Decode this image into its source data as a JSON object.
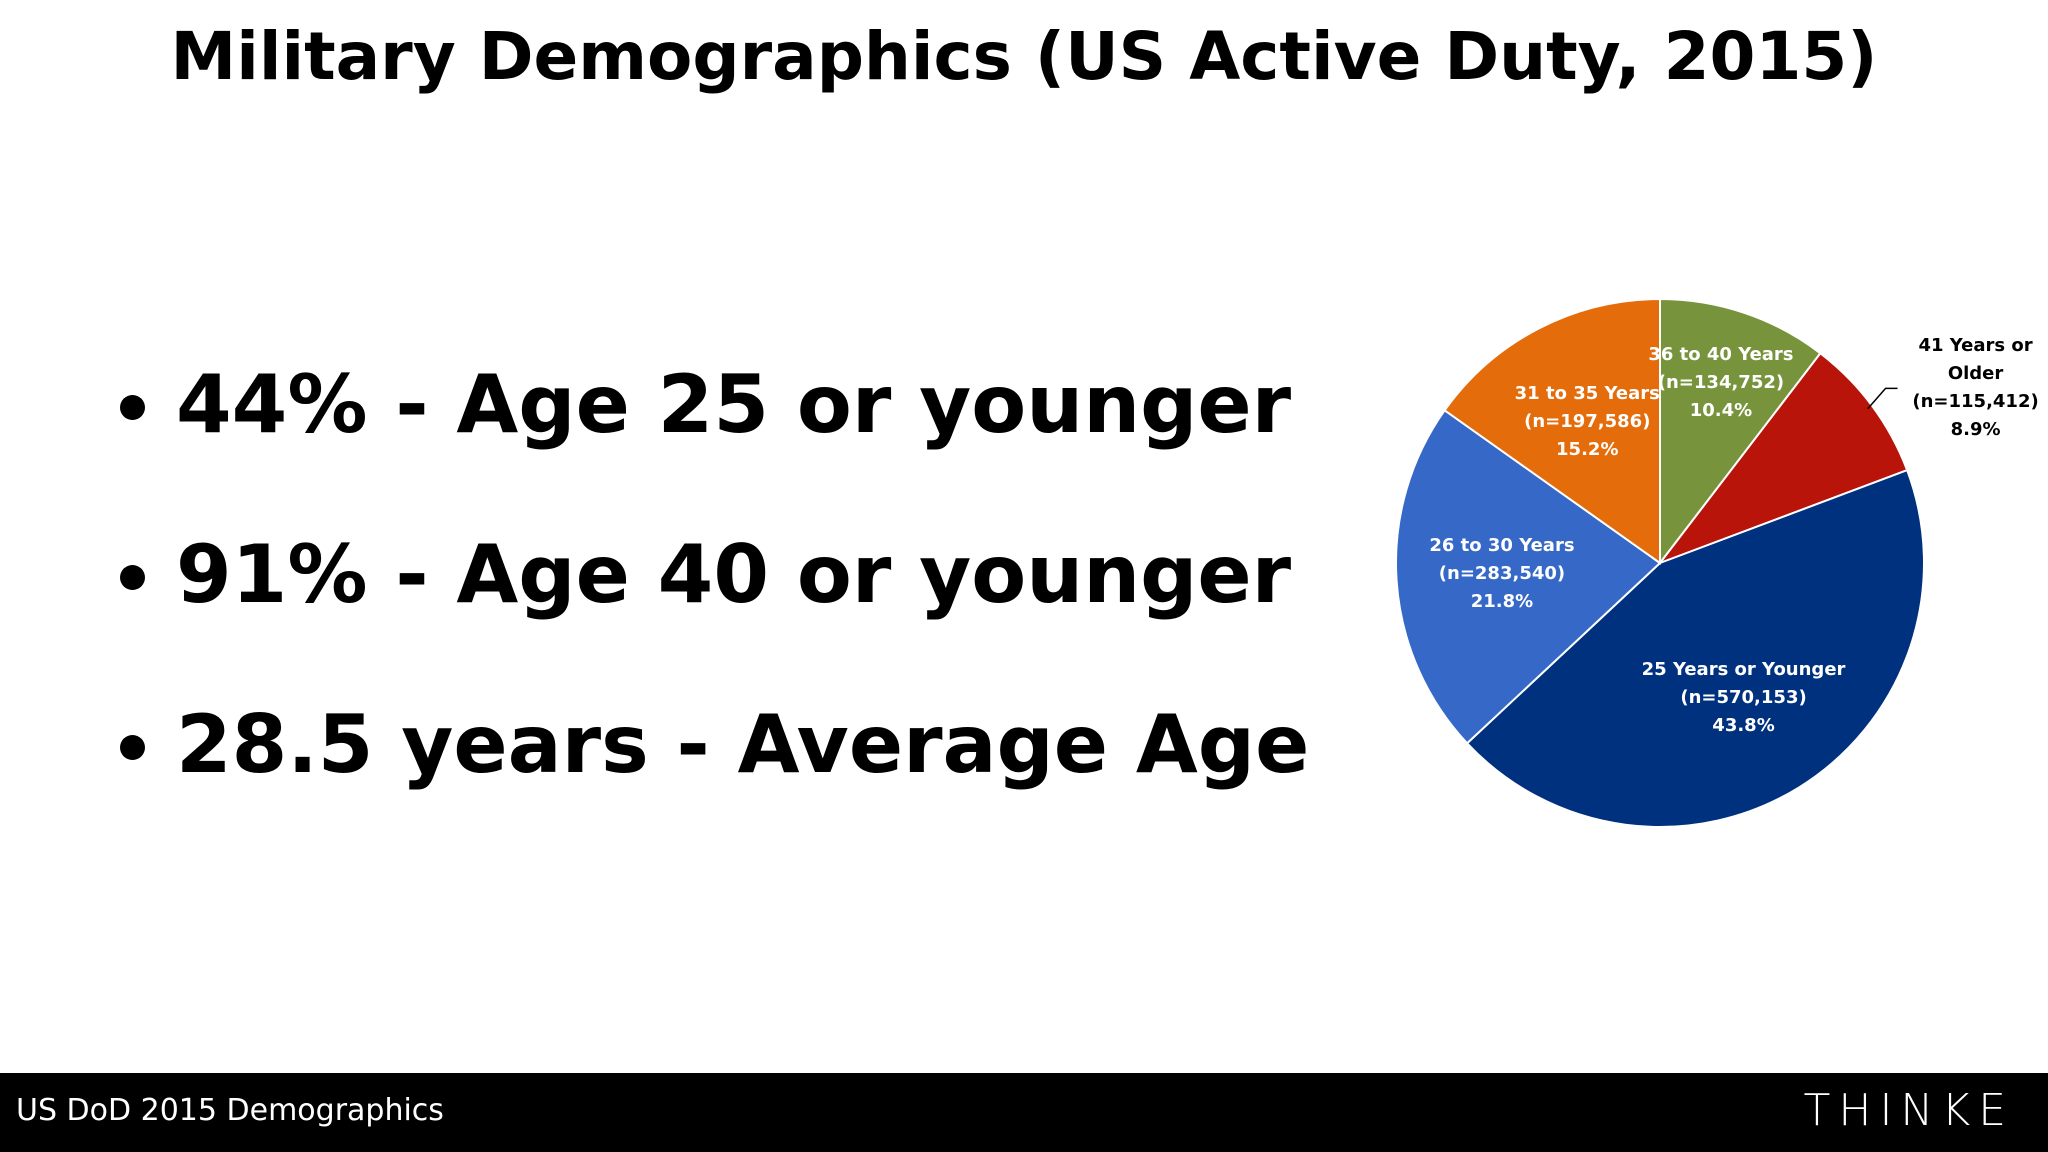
{
  "title": "Military Demographics (US Active Duty, 2015)",
  "bullets": [
    "44% - Age 25 or younger",
    "91% - Age 40 or younger",
    "28.5 years - Average Age"
  ],
  "chart_data": {
    "type": "pie",
    "categories": [
      "36 to 40 Years",
      "41 Years or Older",
      "25 Years or Younger",
      "26 to 30 Years",
      "31 to 35 Years"
    ],
    "values": [
      10.4,
      8.9,
      43.8,
      21.8,
      15.2
    ],
    "value_labels": [
      "10.4%",
      "8.9%",
      "43.8%",
      "21.8%",
      "15.2%"
    ],
    "counts": [
      134752,
      115412,
      570153,
      283540,
      197586
    ],
    "count_labels": [
      "(n=134,752)",
      "(n=115,412)",
      "(n=570,153)",
      "(n=283,540)",
      "(n=197,586)"
    ],
    "colors": [
      "#77933c",
      "#b8140a",
      "#00317f",
      "#3568c7",
      "#e46c0a"
    ]
  },
  "footer": {
    "source": "US DoD 2015 Demographics",
    "logo": "THINKE"
  }
}
